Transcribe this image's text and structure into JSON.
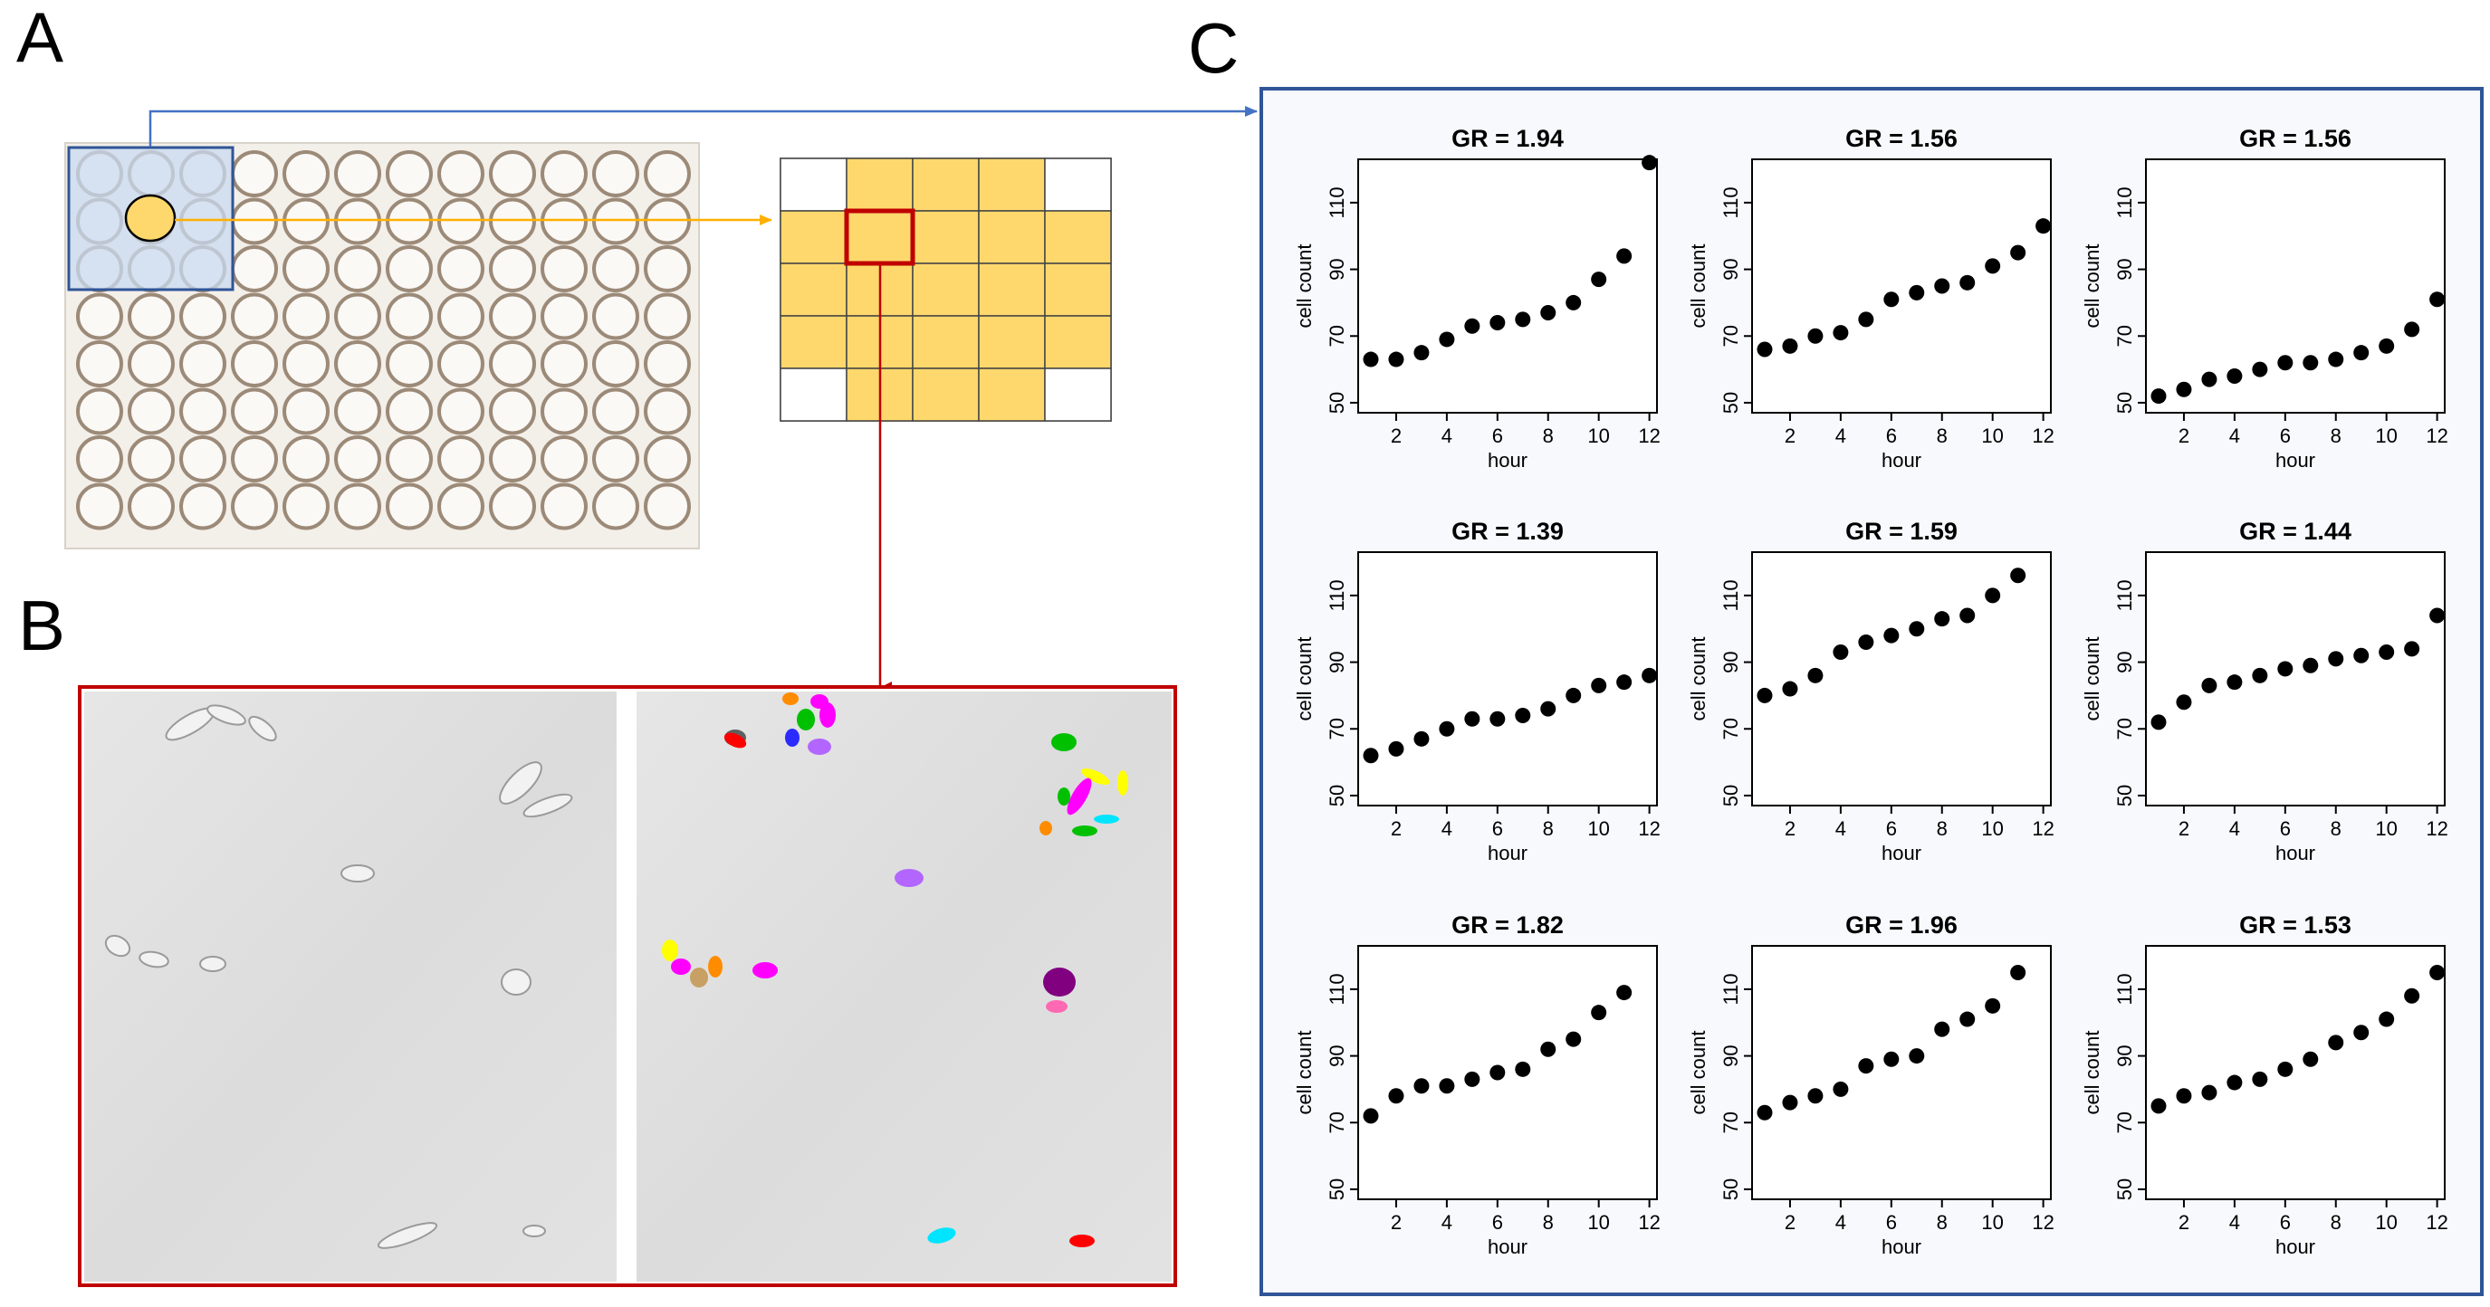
{
  "panels": {
    "a": {
      "label": "A"
    },
    "b": {
      "label": "B"
    },
    "c": {
      "label": "C"
    }
  },
  "colors": {
    "well_fill": "#fed86c",
    "c_frame": "#2f5597",
    "b_frame": "#c00000",
    "arrow_blue": "#4472c4",
    "arrow_orange": "#ffb000",
    "arrow_red": "#c00000",
    "highlight_fill": "#c9daf0"
  },
  "plate": {
    "rows": 8,
    "cols": 12
  },
  "tile_grid": {
    "rows": 5,
    "cols": 5,
    "corners_empty": true
  },
  "cell_colors": [
    "#ff0000",
    "#ff00ff",
    "#00c000",
    "#2b2bff",
    "#ffff00",
    "#00e5ff",
    "#b266ff",
    "#ff8c00",
    "#800080",
    "#c8a064",
    "#ff69b4",
    "#606060"
  ],
  "chart_data": [
    {
      "type": "scatter",
      "title": "GR = 1.94",
      "xlabel": "hour",
      "ylabel": "cell count",
      "xlim": [
        0.5,
        12.3
      ],
      "ylim": [
        47,
        123
      ],
      "xticks": [
        "2",
        "4",
        "6",
        "8",
        "10",
        "12"
      ],
      "yticks": [
        "50",
        "70",
        "90",
        "110"
      ],
      "x": [
        1,
        2,
        3,
        4,
        5,
        6,
        7,
        8,
        9,
        10,
        11,
        12
      ],
      "y": [
        63,
        63,
        65,
        69,
        73,
        74,
        75,
        77,
        80,
        87,
        94,
        122
      ]
    },
    {
      "type": "scatter",
      "title": "GR = 1.56",
      "xlabel": "hour",
      "ylabel": "cell count",
      "xlim": [
        0.5,
        12.3
      ],
      "ylim": [
        47,
        123
      ],
      "xticks": [
        "2",
        "4",
        "6",
        "8",
        "10",
        "12"
      ],
      "yticks": [
        "50",
        "70",
        "90",
        "110"
      ],
      "x": [
        1,
        2,
        3,
        4,
        5,
        6,
        7,
        8,
        9,
        10,
        11,
        12
      ],
      "y": [
        66,
        67,
        70,
        71,
        75,
        81,
        83,
        85,
        86,
        91,
        95,
        103
      ]
    },
    {
      "type": "scatter",
      "title": "GR = 1.56",
      "xlabel": "hour",
      "ylabel": "cell count",
      "xlim": [
        0.5,
        12.3
      ],
      "ylim": [
        47,
        123
      ],
      "xticks": [
        "2",
        "4",
        "6",
        "8",
        "10",
        "12"
      ],
      "yticks": [
        "50",
        "70",
        "90",
        "110"
      ],
      "x": [
        1,
        2,
        3,
        4,
        5,
        6,
        7,
        8,
        9,
        10,
        11,
        12
      ],
      "y": [
        52,
        54,
        57,
        58,
        60,
        62,
        62,
        63,
        65,
        67,
        72,
        81
      ]
    },
    {
      "type": "scatter",
      "title": "GR = 1.39",
      "xlabel": "hour",
      "ylabel": "cell count",
      "xlim": [
        0.5,
        12.3
      ],
      "ylim": [
        47,
        123
      ],
      "xticks": [
        "2",
        "4",
        "6",
        "8",
        "10",
        "12"
      ],
      "yticks": [
        "50",
        "70",
        "90",
        "110"
      ],
      "x": [
        1,
        2,
        3,
        4,
        5,
        6,
        7,
        8,
        9,
        10,
        11,
        12
      ],
      "y": [
        62,
        64,
        67,
        70,
        73,
        73,
        74,
        76,
        80,
        83,
        84,
        86
      ]
    },
    {
      "type": "scatter",
      "title": "GR = 1.59",
      "xlabel": "hour",
      "ylabel": "cell count",
      "xlim": [
        0.5,
        12.3
      ],
      "ylim": [
        47,
        123
      ],
      "xticks": [
        "2",
        "4",
        "6",
        "8",
        "10",
        "12"
      ],
      "yticks": [
        "50",
        "70",
        "90",
        "110"
      ],
      "x": [
        1,
        2,
        3,
        4,
        5,
        6,
        7,
        8,
        9,
        10,
        11
      ],
      "y": [
        80,
        82,
        86,
        93,
        96,
        98,
        100,
        103,
        104,
        110,
        116
      ]
    },
    {
      "type": "scatter",
      "title": "GR = 1.44",
      "xlabel": "hour",
      "ylabel": "cell count",
      "xlim": [
        0.5,
        12.3
      ],
      "ylim": [
        47,
        123
      ],
      "xticks": [
        "2",
        "4",
        "6",
        "8",
        "10",
        "12"
      ],
      "yticks": [
        "50",
        "70",
        "90",
        "110"
      ],
      "x": [
        1,
        2,
        3,
        4,
        5,
        6,
        7,
        8,
        9,
        10,
        11,
        12
      ],
      "y": [
        72,
        78,
        83,
        84,
        86,
        88,
        89,
        91,
        92,
        93,
        94,
        104
      ]
    },
    {
      "type": "scatter",
      "title": "GR = 1.82",
      "xlabel": "hour",
      "ylabel": "cell count",
      "xlim": [
        0.5,
        12.3
      ],
      "ylim": [
        47,
        123
      ],
      "xticks": [
        "2",
        "4",
        "6",
        "8",
        "10",
        "12"
      ],
      "yticks": [
        "50",
        "70",
        "90",
        "110"
      ],
      "x": [
        1,
        2,
        3,
        4,
        5,
        6,
        7,
        8,
        9,
        10,
        11
      ],
      "y": [
        72,
        78,
        81,
        81,
        83,
        85,
        86,
        92,
        95,
        103,
        109
      ]
    },
    {
      "type": "scatter",
      "title": "GR = 1.96",
      "xlabel": "hour",
      "ylabel": "cell count",
      "xlim": [
        0.5,
        12.3
      ],
      "ylim": [
        47,
        123
      ],
      "xticks": [
        "2",
        "4",
        "6",
        "8",
        "10",
        "12"
      ],
      "yticks": [
        "50",
        "70",
        "90",
        "110"
      ],
      "x": [
        1,
        2,
        3,
        4,
        5,
        6,
        7,
        8,
        9,
        10,
        11
      ],
      "y": [
        73,
        76,
        78,
        80,
        87,
        89,
        90,
        98,
        101,
        105,
        115
      ]
    },
    {
      "type": "scatter",
      "title": "GR = 1.53",
      "xlabel": "hour",
      "ylabel": "cell count",
      "xlim": [
        0.5,
        12.3
      ],
      "ylim": [
        47,
        123
      ],
      "xticks": [
        "2",
        "4",
        "6",
        "8",
        "10",
        "12"
      ],
      "yticks": [
        "50",
        "70",
        "90",
        "110"
      ],
      "x": [
        1,
        2,
        3,
        4,
        5,
        6,
        7,
        8,
        9,
        10,
        11,
        12
      ],
      "y": [
        75,
        78,
        79,
        82,
        83,
        86,
        89,
        94,
        97,
        101,
        108,
        115
      ]
    }
  ]
}
